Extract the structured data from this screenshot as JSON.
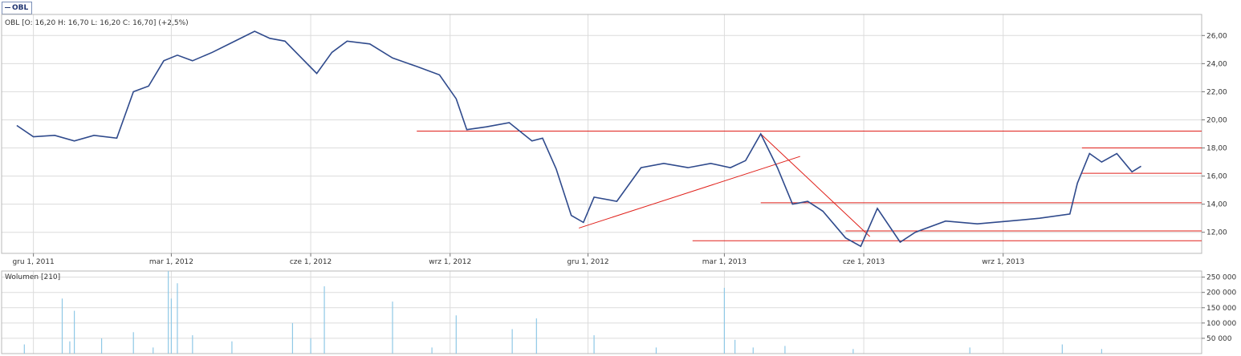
{
  "legend": {
    "ticker": "OBL"
  },
  "colors": {
    "price": "#2f4a8c",
    "trend": "#e0201a",
    "volume": "#8fc8e6",
    "grid": "#dcdcdc",
    "frame": "#b8b8b8",
    "text": "#333333"
  },
  "chart_data": [
    {
      "type": "line",
      "title": "OBL [O: 16,20  H: 16,70  L: 16,20  C: 16,70] (+2,5%)",
      "series": [
        {
          "name": "OBL",
          "points": [
            [
              "2011-11-20",
              19.6
            ],
            [
              "2011-12-01",
              18.8
            ],
            [
              "2011-12-15",
              18.9
            ],
            [
              "2011-12-28",
              18.5
            ],
            [
              "2012-01-10",
              18.9
            ],
            [
              "2012-01-25",
              18.7
            ],
            [
              "2012-02-05",
              22.0
            ],
            [
              "2012-02-15",
              22.4
            ],
            [
              "2012-02-25",
              24.2
            ],
            [
              "2012-03-05",
              24.6
            ],
            [
              "2012-03-15",
              24.2
            ],
            [
              "2012-03-28",
              24.8
            ],
            [
              "2012-04-10",
              25.5
            ],
            [
              "2012-04-25",
              26.3
            ],
            [
              "2012-05-05",
              25.8
            ],
            [
              "2012-05-15",
              25.6
            ],
            [
              "2012-05-25",
              24.5
            ],
            [
              "2012-06-05",
              23.3
            ],
            [
              "2012-06-15",
              24.8
            ],
            [
              "2012-06-25",
              25.6
            ],
            [
              "2012-07-10",
              25.4
            ],
            [
              "2012-07-25",
              24.4
            ],
            [
              "2012-08-10",
              23.8
            ],
            [
              "2012-08-25",
              23.2
            ],
            [
              "2012-09-05",
              21.5
            ],
            [
              "2012-09-12",
              19.3
            ],
            [
              "2012-09-25",
              19.5
            ],
            [
              "2012-10-10",
              19.8
            ],
            [
              "2012-10-25",
              18.5
            ],
            [
              "2012-11-01",
              18.7
            ],
            [
              "2012-11-10",
              16.5
            ],
            [
              "2012-11-20",
              13.2
            ],
            [
              "2012-11-28",
              12.7
            ],
            [
              "2012-12-05",
              14.5
            ],
            [
              "2012-12-20",
              14.2
            ],
            [
              "2013-01-05",
              16.6
            ],
            [
              "2013-01-20",
              16.9
            ],
            [
              "2013-02-05",
              16.6
            ],
            [
              "2013-02-20",
              16.9
            ],
            [
              "2013-03-05",
              16.6
            ],
            [
              "2013-03-15",
              17.1
            ],
            [
              "2013-03-25",
              19.0
            ],
            [
              "2013-04-05",
              16.6
            ],
            [
              "2013-04-15",
              14.0
            ],
            [
              "2013-04-25",
              14.2
            ],
            [
              "2013-05-05",
              13.5
            ],
            [
              "2013-05-20",
              11.6
            ],
            [
              "2013-05-30",
              11.0
            ],
            [
              "2013-06-10",
              13.7
            ],
            [
              "2013-06-25",
              11.3
            ],
            [
              "2013-07-05",
              12.0
            ],
            [
              "2013-07-25",
              12.8
            ],
            [
              "2013-08-15",
              12.6
            ],
            [
              "2013-09-05",
              12.8
            ],
            [
              "2013-09-25",
              13.0
            ],
            [
              "2013-10-15",
              13.3
            ],
            [
              "2013-10-20",
              15.5
            ],
            [
              "2013-10-28",
              17.6
            ],
            [
              "2013-11-05",
              17.0
            ],
            [
              "2013-11-15",
              17.6
            ],
            [
              "2013-11-25",
              16.3
            ],
            [
              "2013-12-01",
              16.7
            ]
          ]
        }
      ],
      "x_ticks": [
        {
          "date": "2011-12-01",
          "label": "gru 1, 2011"
        },
        {
          "date": "2012-03-01",
          "label": "mar 1, 2012"
        },
        {
          "date": "2012-06-01",
          "label": "cze 1, 2012"
        },
        {
          "date": "2012-09-01",
          "label": "wrz 1, 2012"
        },
        {
          "date": "2012-12-01",
          "label": "gru 1, 2012"
        },
        {
          "date": "2013-03-01",
          "label": "mar 1, 2013"
        },
        {
          "date": "2013-06-01",
          "label": "cze 1, 2013"
        },
        {
          "date": "2013-09-01",
          "label": "wrz 1, 2013"
        }
      ],
      "y_ticks": [
        "12,00",
        "14,00",
        "16,00",
        "18,00",
        "20,00",
        "22,00",
        "24,00",
        "26,00"
      ],
      "xlim": [
        "2011-11-10",
        "2014-01-10"
      ],
      "ylim": [
        10.5,
        27.5
      ],
      "grid": true,
      "trend_lines": [
        {
          "type": "horizontal",
          "y": 19.2,
          "from": "2012-08-10",
          "to": "2014-01-10"
        },
        {
          "type": "horizontal",
          "y": 18.0,
          "from": "2013-10-23",
          "to": "2014-01-10"
        },
        {
          "type": "horizontal",
          "y": 16.2,
          "from": "2013-10-23",
          "to": "2014-01-10"
        },
        {
          "type": "horizontal",
          "y": 14.1,
          "from": "2013-03-25",
          "to": "2014-01-10"
        },
        {
          "type": "horizontal",
          "y": 12.1,
          "from": "2013-05-20",
          "to": "2014-01-10"
        },
        {
          "type": "horizontal",
          "y": 11.4,
          "from": "2013-02-08",
          "to": "2014-01-10"
        },
        {
          "type": "line",
          "x1": "2012-11-25",
          "y1": 12.3,
          "x2": "2013-04-20",
          "y2": 17.4
        },
        {
          "type": "line",
          "x1": "2013-03-25",
          "y1": 19.0,
          "x2": "2013-06-05",
          "y2": 11.7
        }
      ]
    },
    {
      "type": "bar",
      "title": "Wolumen [210]",
      "y_ticks": [
        "50 000",
        "100 000",
        "150 000",
        "200 000",
        "250 000"
      ],
      "ylim": [
        0,
        270000
      ],
      "series": [
        {
          "name": "Wolumen",
          "points": [
            [
              "2011-12-20",
              180000
            ],
            [
              "2011-12-28",
              140000
            ],
            [
              "2011-12-25",
              40000
            ],
            [
              "2012-01-15",
              50000
            ],
            [
              "2012-02-05",
              70000
            ],
            [
              "2012-02-28",
              270000
            ],
            [
              "2012-03-05",
              230000
            ],
            [
              "2012-03-01",
              180000
            ],
            [
              "2012-03-15",
              60000
            ],
            [
              "2012-04-10",
              40000
            ],
            [
              "2012-05-20",
              100000
            ],
            [
              "2012-06-10",
              220000
            ],
            [
              "2012-06-01",
              50000
            ],
            [
              "2012-07-25",
              170000
            ],
            [
              "2012-08-20",
              20000
            ],
            [
              "2012-09-05",
              125000
            ],
            [
              "2012-10-12",
              80000
            ],
            [
              "2012-10-28",
              115000
            ],
            [
              "2012-12-05",
              60000
            ],
            [
              "2013-01-15",
              20000
            ],
            [
              "2013-03-01",
              215000
            ],
            [
              "2013-03-08",
              45000
            ],
            [
              "2013-03-20",
              20000
            ],
            [
              "2013-04-10",
              25000
            ],
            [
              "2013-05-25",
              15000
            ],
            [
              "2013-08-10",
              20000
            ],
            [
              "2013-10-10",
              30000
            ],
            [
              "2013-11-05",
              15000
            ],
            [
              "2011-11-25",
              30000
            ],
            [
              "2012-02-18",
              20000
            ]
          ]
        }
      ]
    }
  ]
}
